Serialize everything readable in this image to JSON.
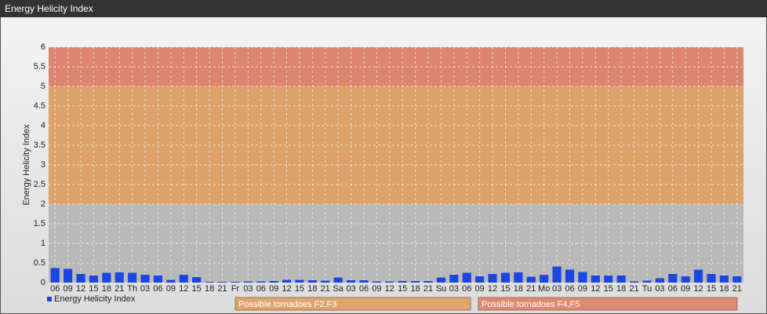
{
  "chart_data": {
    "type": "bar",
    "title": "Energy Helicity Index",
    "y_label": "Energy Helicity Index",
    "categories": [
      "06",
      "09",
      "12",
      "15",
      "18",
      "21",
      "Th",
      "03",
      "06",
      "09",
      "12",
      "15",
      "18",
      "21",
      "Fr",
      "03",
      "06",
      "09",
      "12",
      "15",
      "18",
      "21",
      "Sa",
      "03",
      "06",
      "09",
      "12",
      "15",
      "18",
      "21",
      "Su",
      "03",
      "06",
      "09",
      "12",
      "15",
      "18",
      "21",
      "Mo",
      "03",
      "06",
      "09",
      "12",
      "15",
      "18",
      "21",
      "Tu",
      "03",
      "06",
      "09",
      "12",
      "15",
      "18",
      "21"
    ],
    "series": [
      {
        "name": "Energy Helicity Index",
        "color": "#1a47e0",
        "values": [
          0.37,
          0.35,
          0.22,
          0.18,
          0.25,
          0.26,
          0.25,
          0.2,
          0.18,
          0.07,
          0.2,
          0.14,
          0.02,
          0.02,
          0.02,
          0.03,
          0.03,
          0.04,
          0.07,
          0.07,
          0.06,
          0.05,
          0.13,
          0.06,
          0.06,
          0.03,
          0.03,
          0.04,
          0.04,
          0.04,
          0.13,
          0.2,
          0.25,
          0.16,
          0.22,
          0.25,
          0.26,
          0.15,
          0.2,
          0.41,
          0.33,
          0.27,
          0.18,
          0.18,
          0.18,
          0.03,
          0.05,
          0.11,
          0.22,
          0.16,
          0.33,
          0.22,
          0.18,
          0.16
        ]
      }
    ],
    "ylim": [
      0,
      6
    ],
    "yticks": [
      0,
      0.5,
      1,
      1.5,
      2,
      2.5,
      3,
      3.5,
      4,
      4.5,
      5,
      5.5,
      6
    ],
    "grid": true,
    "plot_background": "#b9b9b9",
    "bands": [
      {
        "from": 2,
        "to": 5,
        "color": "#e0a060",
        "label": "Possible tornadoes F2,F3"
      },
      {
        "from": 5,
        "to": 6,
        "color": "#e08068",
        "label": "Possible tornadoes F4,F5"
      }
    ]
  }
}
